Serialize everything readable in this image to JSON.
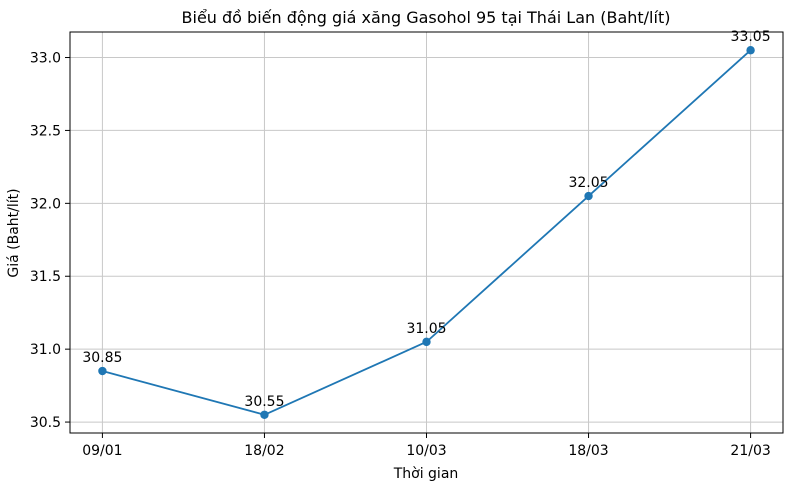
{
  "chart_data": {
    "type": "line",
    "title": "Biểu đồ biến động giá xăng Gasohol 95 tại Thái Lan (Baht/lít)",
    "xlabel": "Thời gian",
    "ylabel": "Giá (Baht/lít)",
    "categories": [
      "09/01",
      "18/02",
      "10/03",
      "18/03",
      "21/03"
    ],
    "values": [
      30.85,
      30.55,
      31.05,
      32.05,
      33.05
    ],
    "point_labels": [
      "30.85",
      "30.55",
      "31.05",
      "32.05",
      "33.05"
    ],
    "y_ticks": [
      30.5,
      31.0,
      31.5,
      32.0,
      32.5,
      33.0
    ],
    "ylim": [
      30.425,
      33.175
    ],
    "grid": true,
    "legend_position": "none",
    "line_color": "#1f77b4",
    "marker_color": "#1f77b4",
    "grid_color": "#c8c8c8",
    "axis_color": "#000000"
  }
}
